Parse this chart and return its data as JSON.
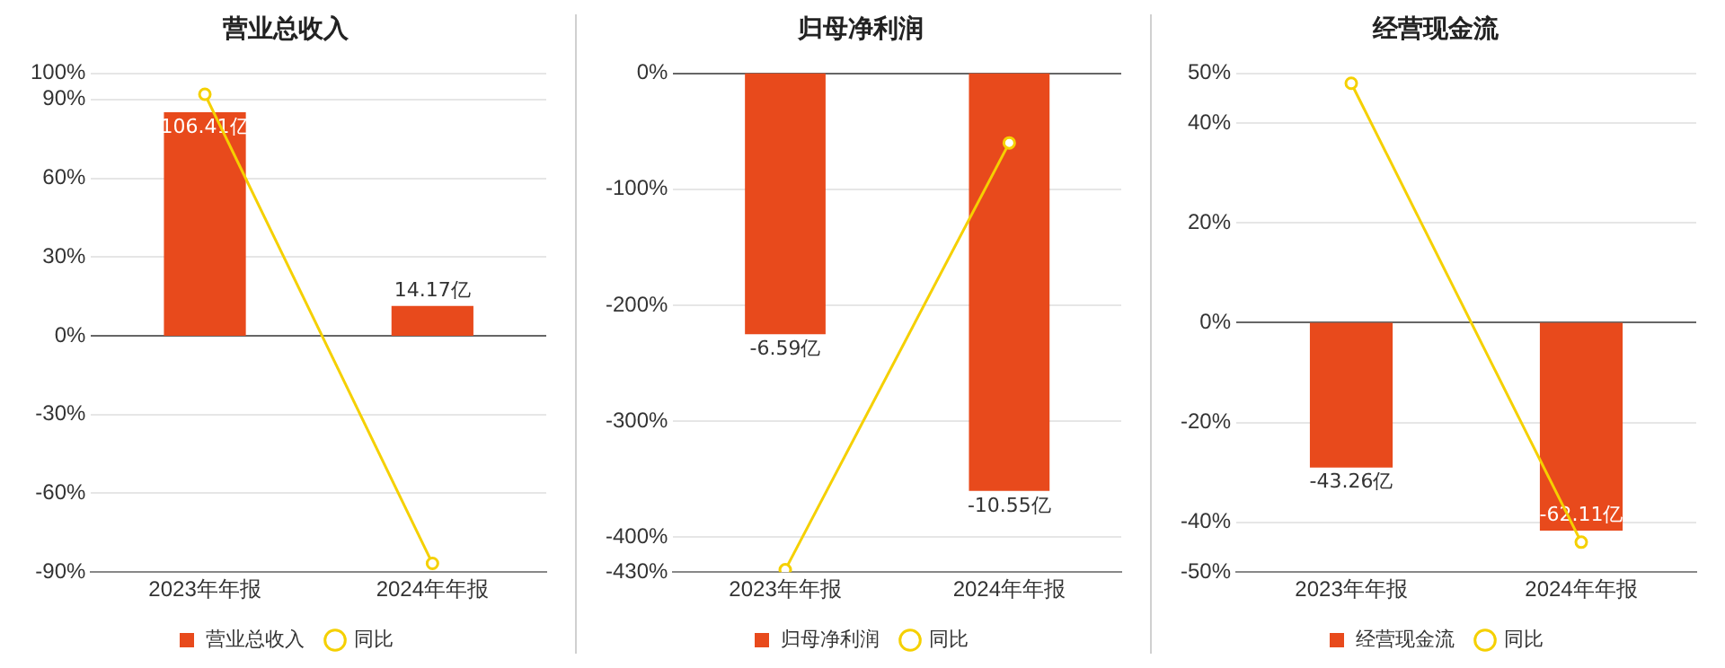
{
  "chart_data": [
    {
      "type": "bar",
      "title": "营业总收入",
      "categories": [
        "2023年年报",
        "2024年年报"
      ],
      "grid": "y",
      "legend": "bottom",
      "ylim": [
        -90,
        100
      ],
      "yticks": [
        {
          "value": 100,
          "label": "100%"
        },
        {
          "value": 90,
          "label": "90%"
        },
        {
          "value": 60,
          "label": "60%"
        },
        {
          "value": 30,
          "label": "30%"
        },
        {
          "value": 0,
          "label": "0%"
        },
        {
          "value": -30,
          "label": "-30%"
        },
        {
          "value": -60,
          "label": "-60%"
        },
        {
          "value": -90,
          "label": "-90%"
        }
      ],
      "y2lim": [
        -112.5,
        125
      ],
      "series": [
        {
          "name": "营业总收入",
          "axis": "y2",
          "color": "#e84a1c",
          "values": [
            106.41,
            14.17
          ],
          "value_labels": [
            "106.41亿",
            "14.17亿"
          ]
        },
        {
          "name": "同比",
          "type": "line",
          "axis": "y",
          "color": "#f5d000",
          "marker": "circle",
          "values": [
            92,
            -86.7
          ]
        }
      ]
    },
    {
      "type": "bar",
      "title": "归母净利润",
      "categories": [
        "2023年年报",
        "2024年年报"
      ],
      "grid": "y",
      "legend": "bottom",
      "ylim": [
        -430,
        0
      ],
      "yticks": [
        {
          "value": 0,
          "label": "0%"
        },
        {
          "value": -100,
          "label": "-100%"
        },
        {
          "value": -200,
          "label": "-200%"
        },
        {
          "value": -300,
          "label": "-300%"
        },
        {
          "value": -400,
          "label": "-400%"
        },
        {
          "value": -430,
          "label": "-430%"
        }
      ],
      "y2lim": [
        -12.6,
        0
      ],
      "series": [
        {
          "name": "归母净利润",
          "axis": "y2",
          "color": "#e84a1c",
          "values": [
            -6.59,
            -10.55
          ],
          "value_labels": [
            "-6.59亿",
            "-10.55亿"
          ]
        },
        {
          "name": "同比",
          "type": "line",
          "axis": "y",
          "color": "#f5d000",
          "marker": "circle",
          "values": [
            -428,
            -60
          ]
        }
      ]
    },
    {
      "type": "bar",
      "title": "经营现金流",
      "categories": [
        "2023年年报",
        "2024年年报"
      ],
      "grid": "y",
      "legend": "bottom",
      "ylim": [
        -50,
        50
      ],
      "yticks": [
        {
          "value": 50,
          "label": "50%"
        },
        {
          "value": 40,
          "label": "40%"
        },
        {
          "value": 20,
          "label": "20%"
        },
        {
          "value": 0,
          "label": "0%"
        },
        {
          "value": -20,
          "label": "-20%"
        },
        {
          "value": -40,
          "label": "-40%"
        },
        {
          "value": -50,
          "label": "-50%"
        }
      ],
      "y2lim": [
        -74.5,
        74.5
      ],
      "series": [
        {
          "name": "经营现金流",
          "axis": "y2",
          "color": "#e84a1c",
          "values": [
            -43.26,
            -62.11
          ],
          "value_labels": [
            "-43.26亿",
            "-62.11亿"
          ]
        },
        {
          "name": "同比",
          "type": "line",
          "axis": "y",
          "color": "#f5d000",
          "marker": "circle",
          "values": [
            48,
            -44
          ]
        }
      ]
    }
  ]
}
